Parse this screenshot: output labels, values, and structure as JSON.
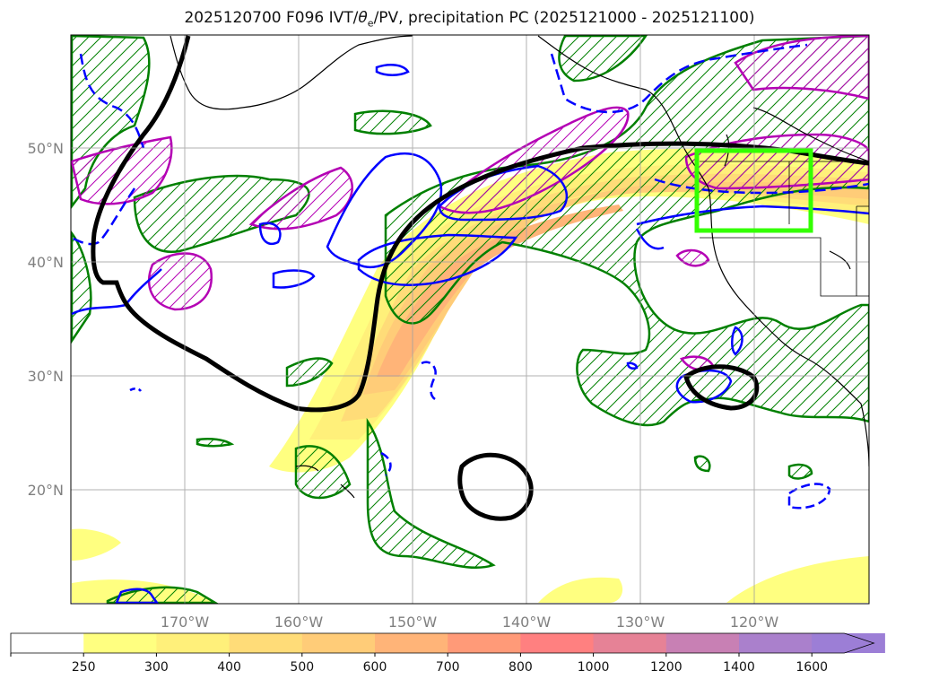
{
  "title_prefix": "2025120700 F096 IVT/",
  "title_theta": "θ",
  "title_sub": "e",
  "title_suffix": "/PV, precipitation PC (2025121000 - 2025121100)",
  "axes": {
    "lat_labels": [
      "50°N",
      "40°N",
      "30°N",
      "20°N"
    ],
    "lon_labels": [
      "170°W",
      "160°W",
      "150°W",
      "140°W",
      "130°W",
      "120°W"
    ],
    "lat_values": [
      50,
      40,
      30,
      20
    ],
    "lon_values": [
      -170,
      -160,
      -150,
      -140,
      -130,
      -120
    ],
    "lon_range": [
      -180,
      -110
    ],
    "lat_range": [
      10,
      60
    ],
    "grid": true
  },
  "colorbar": {
    "levels": [
      "250",
      "300",
      "400",
      "500",
      "600",
      "700",
      "800",
      "1000",
      "1200",
      "1400",
      "1600"
    ],
    "colors": [
      "#ffffff",
      "#ffff80",
      "#fff07a",
      "#ffdc78",
      "#ffcc78",
      "#ffb478",
      "#ff9a78",
      "#ff8080",
      "#e68296",
      "#c880b4",
      "#aa80cc",
      "#9c7ed6"
    ],
    "extend": "max"
  },
  "overlays": {
    "precip_box_color": "#33ff00",
    "ivt_contour_color": "#000000",
    "theta_contour_color": "#0000ff",
    "pv_contour_color": "#b400b4",
    "precip_hatch_color": "#008000"
  }
}
